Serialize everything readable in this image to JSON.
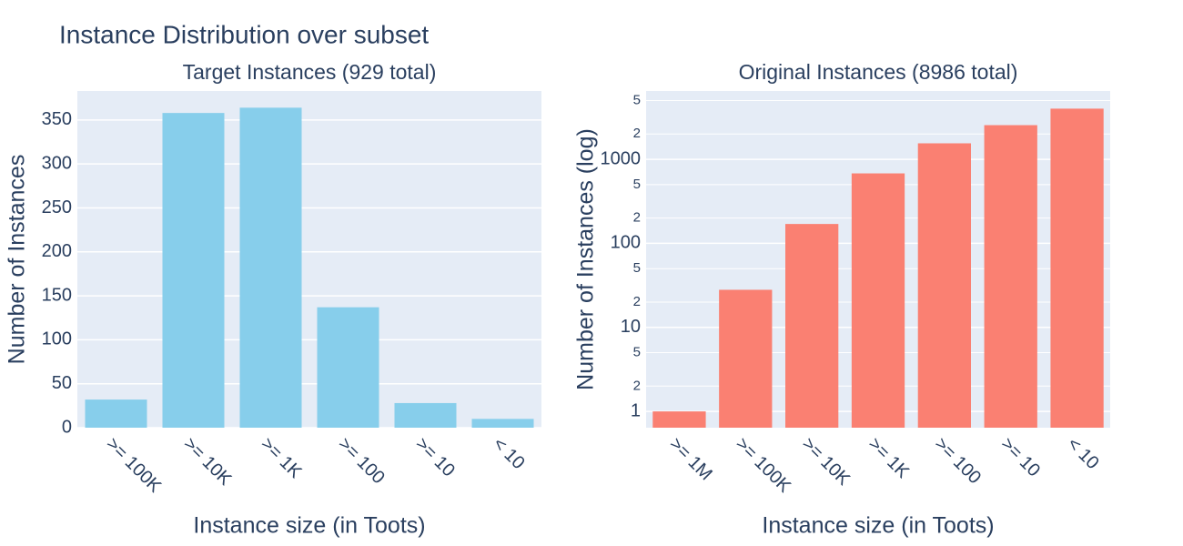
{
  "title": "Instance Distribution over subset",
  "chart_data": [
    {
      "type": "bar",
      "title": "Target Instances (929 total)",
      "x_label": "Instance size (in Toots)",
      "y_label": "Number of Instances",
      "categories": [
        ">= 100K",
        ">= 10K",
        ">= 1K",
        ">= 100",
        ">= 10",
        "< 10"
      ],
      "values": [
        32,
        358,
        364,
        137,
        28,
        10
      ],
      "color": "#87ceeb",
      "ylim": [
        0,
        383
      ],
      "yticks": [
        0,
        50,
        100,
        150,
        200,
        250,
        300,
        350
      ],
      "log": false,
      "grid": true
    },
    {
      "type": "bar",
      "title": "Original Instances (8986 total)",
      "x_label": "Instance size (in Toots)",
      "y_label": "Number of Instances (log)",
      "categories": [
        ">= 1M",
        ">= 100K",
        ">= 10K",
        ">= 1K",
        ">= 100",
        ">= 10",
        "< 10"
      ],
      "values": [
        1,
        28,
        170,
        680,
        1550,
        2550,
        4007
      ],
      "color": "#fa8072",
      "ylim": [
        0.64,
        6500
      ],
      "yticks": [
        1,
        2,
        5,
        10,
        {
          "value": 20,
          "label": "2"
        },
        {
          "value": 50,
          "label": "5"
        },
        100,
        {
          "value": 200,
          "label": "2"
        },
        {
          "value": 500,
          "label": "5"
        },
        1000,
        {
          "value": 2000,
          "label": "2"
        },
        {
          "value": 5000,
          "label": "5"
        }
      ],
      "log": true,
      "grid": true
    }
  ]
}
